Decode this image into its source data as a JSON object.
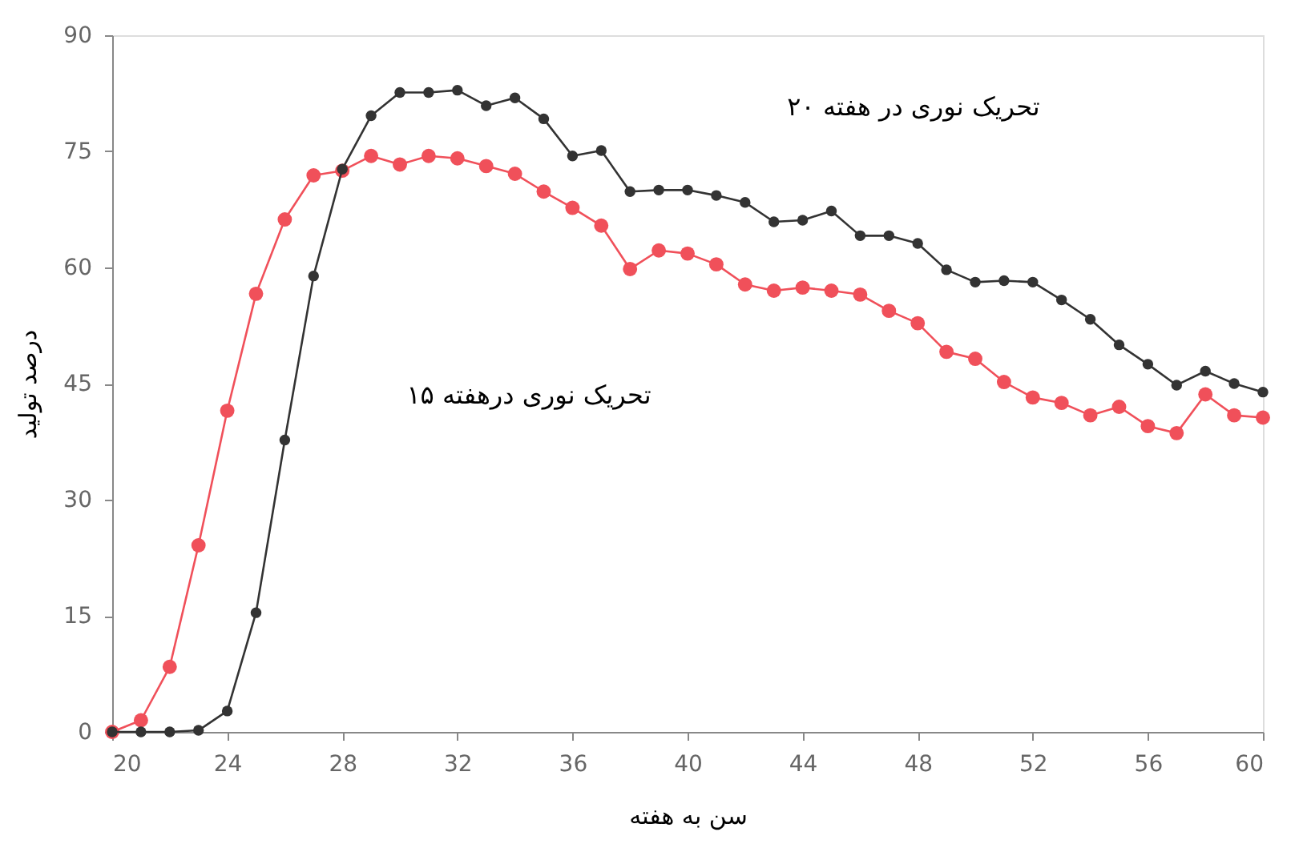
{
  "chart_data": {
    "type": "line",
    "xlabel": "سن به هفته",
    "ylabel": "درصد تولید",
    "x": [
      20,
      21,
      22,
      23,
      24,
      25,
      26,
      27,
      28,
      29,
      30,
      31,
      32,
      33,
      34,
      35,
      36,
      37,
      38,
      39,
      40,
      41,
      42,
      43,
      44,
      45,
      46,
      47,
      48,
      49,
      50,
      51,
      52,
      53,
      54,
      55,
      56,
      57,
      58,
      59,
      60
    ],
    "series": [
      {
        "color": "#333333",
        "values": [
          0,
          0,
          0,
          0.2,
          2.7,
          15.4,
          37.7,
          58.9,
          72.7,
          79.6,
          82.6,
          82.6,
          82.9,
          80.9,
          81.9,
          79.2,
          74.4,
          75.1,
          69.8,
          70,
          70,
          69.3,
          68.4,
          65.9,
          66.1,
          67.3,
          64.1,
          64.1,
          63.1,
          59.7,
          58.1,
          58.3,
          58.1,
          55.8,
          53.3,
          50,
          47.5,
          44.8,
          46.6,
          45,
          43.9
        ]
      },
      {
        "color": "#f0505a",
        "values": [
          0,
          1.5,
          8.4,
          24.1,
          41.5,
          56.6,
          66.2,
          71.9,
          72.5,
          74.4,
          73.3,
          74.4,
          74.1,
          73.1,
          72.1,
          69.8,
          67.7,
          65.4,
          59.8,
          62.2,
          61.8,
          60.4,
          57.8,
          57,
          57.4,
          57,
          56.5,
          54.4,
          52.8,
          49.1,
          48.2,
          45.2,
          43.2,
          42.5,
          40.9,
          42,
          39.5,
          38.6,
          43.6,
          40.9,
          40.6
        ]
      }
    ],
    "xlim": [
      20,
      60
    ],
    "xticks": [
      20,
      24,
      28,
      32,
      36,
      40,
      44,
      48,
      52,
      56,
      60
    ],
    "ylim": [
      0,
      90
    ],
    "yticks": [
      0,
      15,
      30,
      45,
      60,
      75,
      90
    ],
    "annotations": [
      "تحریک نوری در هفته ۲۰",
      "تحریک نوری درهفته ۱۵"
    ],
    "grid": false,
    "marker": "circle",
    "line_style": "solid"
  }
}
